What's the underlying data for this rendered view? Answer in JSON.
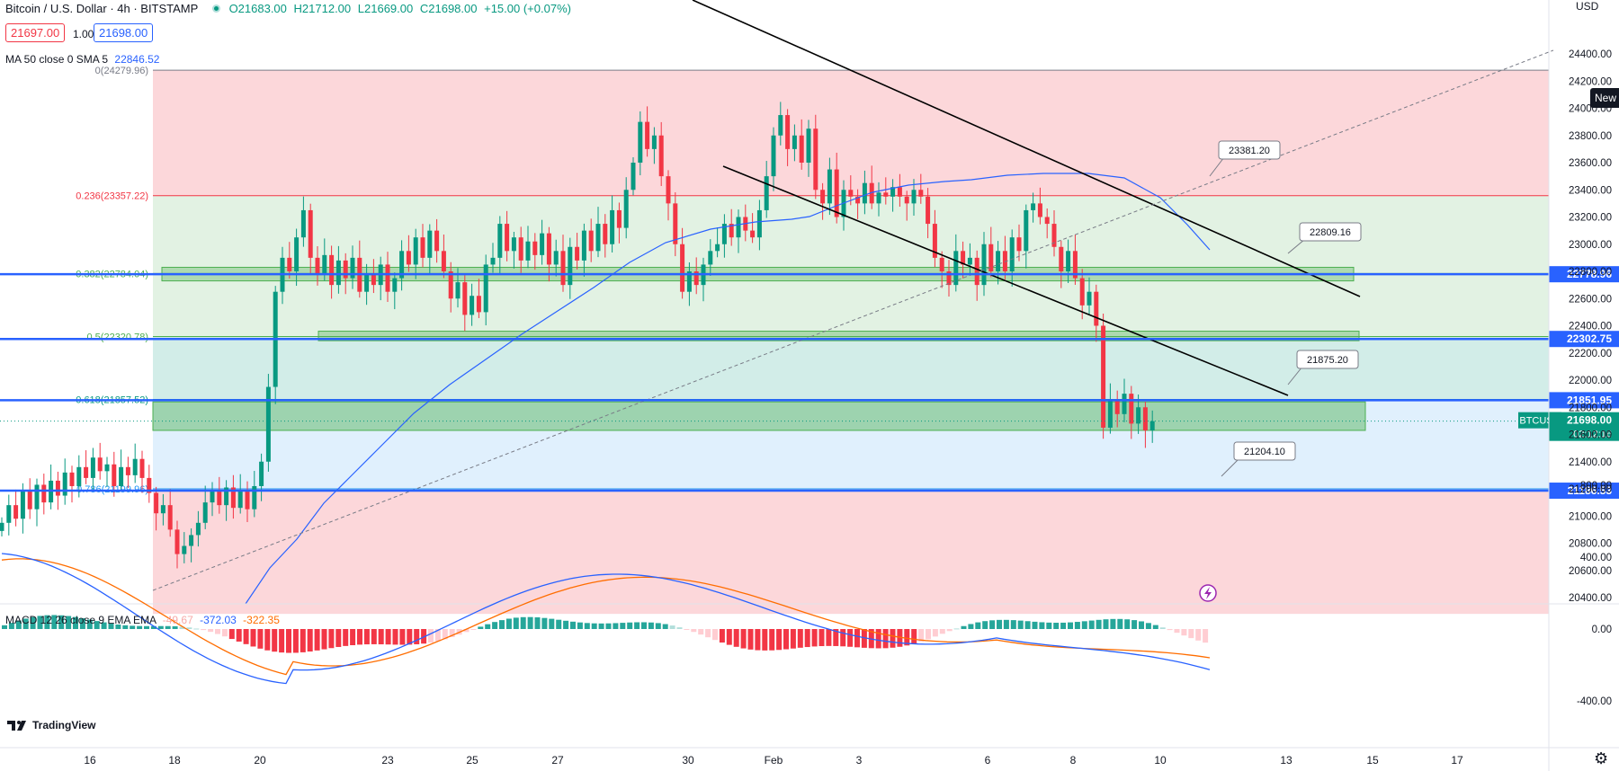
{
  "header": {
    "symbol": "Bitcoin / U.S. Dollar · 4h · BITSTAMP",
    "open": "O21683.00",
    "high": "H21712.00",
    "low": "L21669.00",
    "close": "C21698.00",
    "change": "+15.00 (+0.07%)",
    "sell_price": "21697.00",
    "spread": "1.00",
    "buy_price": "21698.00",
    "ma_label": "MA 50 close 0 SMA 5",
    "ma_value": "22846.52",
    "macd_label": "MACD 12 26 close 9 EMA EMA",
    "macd_hist": "-49.67",
    "macd_line": "-372.03",
    "macd_signal": "-322.35",
    "currency": "USD",
    "logo": "TradingView",
    "new_badge": "New"
  },
  "price_axis": {
    "ticks": [
      "24400.00",
      "24200.00",
      "24000.00",
      "23800.00",
      "23600.00",
      "23400.00",
      "23200.00",
      "23000.00",
      "22800.00",
      "22600.00",
      "22400.00",
      "22200.00",
      "22000.00",
      "21800.00",
      "21600.00",
      "21400.00",
      "21200.00",
      "21000.00",
      "20800.00",
      "20600.00",
      "20400.00"
    ]
  },
  "macd_axis": {
    "ticks": [
      "800.00",
      "400.00",
      "0.00",
      "-400.00"
    ]
  },
  "time_axis": {
    "labels": [
      "16",
      "18",
      "20",
      "23",
      "25",
      "27",
      "30",
      "Feb",
      "3",
      "6",
      "8",
      "10",
      "13",
      "15",
      "17"
    ]
  },
  "fib_levels": [
    {
      "label": "0(24279.96)",
      "ratio": "0",
      "price": 24279.96
    },
    {
      "label": "0.236(23357.22)",
      "ratio": "0.236",
      "price": 23357.22
    },
    {
      "label": "0.382(22784.04)",
      "ratio": "0.382",
      "price": 22784.04
    },
    {
      "label": "0.5(22320.78)",
      "ratio": "0.5",
      "price": 22320.78
    },
    {
      "label": "0.618(21857.52)",
      "ratio": "0.618",
      "price": 21857.52
    },
    {
      "label": "0.786(21199.96)",
      "ratio": "0.786",
      "price": 21199.96
    }
  ],
  "horizontal_lines": [
    {
      "label": "22778.96",
      "price": 22778.96
    },
    {
      "label": "22302.75",
      "price": 22302.75
    },
    {
      "label": "21851.95",
      "price": 21851.95
    },
    {
      "label": "21186.53",
      "price": 21186.53
    }
  ],
  "callouts": [
    {
      "text": "23381.20"
    },
    {
      "text": "22809.16"
    },
    {
      "text": "21875.20"
    },
    {
      "text": "21204.10"
    }
  ],
  "last_price": {
    "symbol": "BTCUSD",
    "price": "21698.00",
    "countdown": "02:12:16"
  },
  "colors": {
    "up": "#089981",
    "down": "#f23645",
    "blue": "#2962ff",
    "ma": "#2962ff",
    "macd": "#2962ff",
    "signal": "#ff6d00",
    "fib_red": "#f7525f",
    "fib_green": "#4caf50",
    "fib_teal": "#089981",
    "fib_blue": "#2196f3"
  }
}
